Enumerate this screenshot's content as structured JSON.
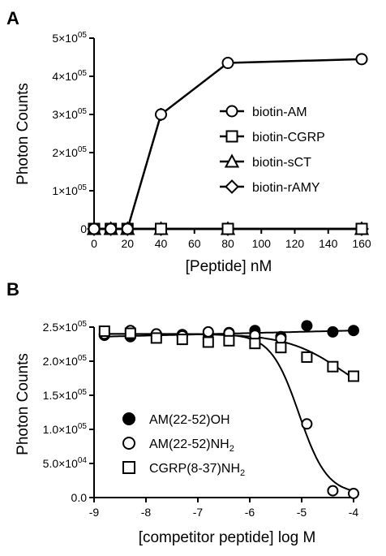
{
  "colors": {
    "ink": "#000000",
    "background": "#ffffff"
  },
  "chart_data": [
    {
      "panel_label": "A",
      "type": "line",
      "xlabel": "[Peptide] nM",
      "ylabel": "Photon Counts",
      "xlim": [
        0,
        160
      ],
      "ylim": [
        0,
        500000
      ],
      "x_ticks": [
        0,
        20,
        40,
        60,
        80,
        100,
        120,
        140,
        160
      ],
      "x_tick_labels": [
        "0",
        "20",
        "40",
        "60",
        "80",
        "100",
        "120",
        "140",
        "160"
      ],
      "y_ticks": [
        0,
        100000,
        200000,
        300000,
        400000,
        500000
      ],
      "y_tick_labels": [
        {
          "mantissa": "0",
          "exp": ""
        },
        {
          "mantissa": "1×10",
          "exp": "05"
        },
        {
          "mantissa": "2×10",
          "exp": "05"
        },
        {
          "mantissa": "3×10",
          "exp": "05"
        },
        {
          "mantissa": "4×10",
          "exp": "05"
        },
        {
          "mantissa": "5×10",
          "exp": "05"
        }
      ],
      "legend_position": "center-right",
      "series": [
        {
          "name": "biotin-AM",
          "marker": "circle-open",
          "x": [
            0,
            10,
            20,
            40,
            80,
            160
          ],
          "y": [
            0,
            0,
            0,
            300000,
            435000,
            445000
          ]
        },
        {
          "name": "biotin-CGRP",
          "marker": "square-open",
          "x": [
            0,
            10,
            20,
            40,
            80,
            160
          ],
          "y": [
            0,
            0,
            0,
            0,
            0,
            0
          ]
        },
        {
          "name": "biotin-sCT",
          "marker": "triangle-open",
          "x": [
            0,
            10,
            20,
            40,
            80,
            160
          ],
          "y": [
            0,
            0,
            0,
            0,
            0,
            0
          ]
        },
        {
          "name": "biotin-rAMY",
          "marker": "diamond-open",
          "x": [
            0,
            10,
            20,
            40,
            80,
            160
          ],
          "y": [
            0,
            0,
            0,
            0,
            0,
            0
          ]
        }
      ]
    },
    {
      "panel_label": "B",
      "type": "scatter",
      "xlabel": "[competitor peptide] log M",
      "ylabel": "Photon Counts",
      "xlim": [
        -9,
        -4
      ],
      "ylim": [
        0,
        250000
      ],
      "x_ticks": [
        -9,
        -8,
        -7,
        -6,
        -5,
        -4
      ],
      "x_tick_labels": [
        "-9",
        "-8",
        "-7",
        "-6",
        "-5",
        "-4"
      ],
      "y_ticks": [
        0,
        50000,
        100000,
        150000,
        200000,
        250000
      ],
      "y_tick_labels": [
        {
          "mantissa": "0.0",
          "exp": ""
        },
        {
          "mantissa": "5.0×10",
          "exp": "04"
        },
        {
          "mantissa": "1.0×10",
          "exp": "05"
        },
        {
          "mantissa": "1.5×10",
          "exp": "05"
        },
        {
          "mantissa": "2.0×10",
          "exp": "05"
        },
        {
          "mantissa": "2.5×10",
          "exp": "05"
        }
      ],
      "legend_position": "bottom-left",
      "series": [
        {
          "name": "AM(22-52)OH",
          "name_sub": "",
          "marker": "circle-filled",
          "x": [
            -8.8,
            -8.3,
            -7.8,
            -7.3,
            -6.8,
            -6.4,
            -5.9,
            -5.4,
            -4.9,
            -4.4,
            -4.0
          ],
          "y": [
            238000,
            236000,
            238000,
            239000,
            240000,
            242000,
            245000,
            236000,
            252000,
            243000,
            245000
          ],
          "fit_y": [
            236000,
            245000
          ]
        },
        {
          "name": "AM(22-52)NH",
          "name_sub": "2",
          "marker": "circle-open",
          "x": [
            -8.8,
            -8.3,
            -7.8,
            -7.3,
            -6.8,
            -6.4,
            -5.9,
            -5.4,
            -4.9,
            -4.4,
            -4.0
          ],
          "y": [
            240000,
            245000,
            240000,
            237000,
            243000,
            241000,
            238000,
            233000,
            108000,
            10000,
            6000
          ],
          "fit_top": 240000,
          "fit_bottom": 5000,
          "fit_logic50": -5.05,
          "fit_slope": 1.6
        },
        {
          "name": "CGRP(8-37)NH",
          "name_sub": "2",
          "marker": "square-open",
          "x": [
            -8.8,
            -8.3,
            -7.8,
            -7.3,
            -6.8,
            -6.4,
            -5.9,
            -5.4,
            -4.9,
            -4.4,
            -4.0
          ],
          "y": [
            244000,
            241000,
            234000,
            232000,
            228000,
            230000,
            226000,
            220000,
            206000,
            192000,
            178000
          ],
          "fit_top": 240000,
          "fit_bottom": 130000,
          "fit_logic50": -4.2,
          "fit_slope": 0.8
        }
      ]
    }
  ]
}
